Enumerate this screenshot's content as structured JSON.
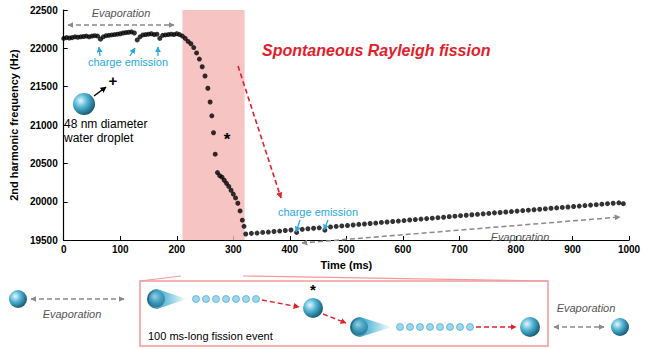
{
  "chart_data": {
    "type": "scatter",
    "xlabel": "Time (ms)",
    "ylabel": "2nd harmonic frequency (Hz)",
    "xlim": [
      0,
      1000
    ],
    "xticks": [
      0,
      100,
      200,
      300,
      400,
      500,
      600,
      700,
      800,
      900,
      1000
    ],
    "ylim": [
      19500,
      22500
    ],
    "yticks": [
      19500,
      20000,
      20500,
      21000,
      21500,
      22000,
      22500
    ],
    "grid": false,
    "color": "#000000",
    "marker": "circle",
    "x": [
      0,
      5,
      10,
      15,
      20,
      25,
      30,
      35,
      40,
      45,
      50,
      55,
      60,
      65,
      70,
      75,
      80,
      85,
      90,
      95,
      100,
      105,
      110,
      115,
      120,
      125,
      130,
      135,
      140,
      145,
      150,
      155,
      160,
      165,
      170,
      175,
      180,
      185,
      190,
      195,
      200,
      205,
      210,
      215,
      220,
      225,
      230,
      235,
      240,
      245,
      250,
      255,
      259,
      262,
      265,
      268,
      272,
      276,
      280,
      284,
      288,
      292,
      296,
      300,
      304,
      308,
      312,
      316,
      319,
      322,
      332,
      342,
      352,
      362,
      372,
      382,
      392,
      402,
      412,
      422,
      432,
      442,
      452,
      462,
      472,
      482,
      492,
      502,
      512,
      522,
      532,
      542,
      552,
      562,
      572,
      582,
      592,
      602,
      612,
      622,
      632,
      642,
      652,
      662,
      672,
      682,
      692,
      702,
      712,
      722,
      732,
      742,
      752,
      762,
      772,
      782,
      792,
      802,
      812,
      822,
      832,
      842,
      852,
      862,
      872,
      882,
      892,
      902,
      912,
      922,
      932,
      942,
      952,
      962,
      972,
      982,
      990
    ],
    "values": [
      22130,
      22140,
      22135,
      22140,
      22150,
      22145,
      22150,
      22155,
      22160,
      22150,
      22160,
      22165,
      22160,
      22120,
      22150,
      22165,
      22170,
      22175,
      22180,
      22185,
      22190,
      22200,
      22205,
      22210,
      22215,
      22200,
      22110,
      22150,
      22175,
      22180,
      22185,
      22190,
      22180,
      22185,
      22130,
      22170,
      22175,
      22180,
      22185,
      22180,
      22190,
      22180,
      22160,
      22130,
      22090,
      22060,
      22010,
      21940,
      21860,
      21760,
      21640,
      21480,
      21300,
      21120,
      20900,
      20620,
      20380,
      20340,
      20320,
      20280,
      20240,
      20200,
      20150,
      20100,
      20050,
      19980,
      19880,
      19760,
      19680,
      19580,
      19588,
      19592,
      19600,
      19605,
      19612,
      19618,
      19625,
      19632,
      19600,
      19640,
      19648,
      19654,
      19660,
      19630,
      19672,
      19678,
      19685,
      19690,
      19697,
      19705,
      19710,
      19716,
      19722,
      19730,
      19736,
      19742,
      19748,
      19755,
      19762,
      19768,
      19774,
      19780,
      19786,
      19792,
      19798,
      19806,
      19812,
      19818,
      19824,
      19830,
      19836,
      19842,
      19848,
      19855,
      19860,
      19866,
      19872,
      19878,
      19885,
      19890,
      19896,
      19902,
      19908,
      19915,
      19920,
      19926,
      19932,
      19938,
      19944,
      19950,
      19956,
      19962,
      19968,
      19975,
      19980,
      19986,
      19975
    ],
    "shaded_region": {
      "x": [
        210,
        320
      ],
      "color": "#f5b5b5"
    },
    "annotations": [
      "Evaporation",
      "charge emission",
      "48 nm diameter water droplet",
      "+",
      "Spontaneous Rayleigh fission",
      "*",
      "charge emission",
      "Evaporation"
    ]
  },
  "diagram": {
    "labels": [
      "Evaporation",
      "*",
      "100 ms-long fission event",
      "Evaporation"
    ]
  }
}
